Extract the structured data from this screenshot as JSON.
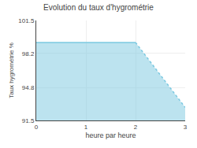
{
  "chart_data": {
    "type": "area",
    "title": "Evolution du taux d'hygrométrie",
    "xlabel": "heure par heure",
    "ylabel": "Taux hygrométrie %",
    "x": [
      0,
      2,
      3
    ],
    "color": "#7ac8e0",
    "series": [
      {
        "values": [
          99.3,
          99.3,
          null
        ],
        "line_style": "solid"
      },
      {
        "values": [
          null,
          99.3,
          92.8
        ],
        "line_style": "dotted"
      }
    ],
    "xlim": [
      0,
      3
    ],
    "xticks": [
      0,
      1,
      2,
      3
    ],
    "ylim": [
      91.5,
      101.5
    ],
    "yticks": [
      91.5,
      94.8,
      98.2,
      101.5
    ],
    "grid": true
  }
}
